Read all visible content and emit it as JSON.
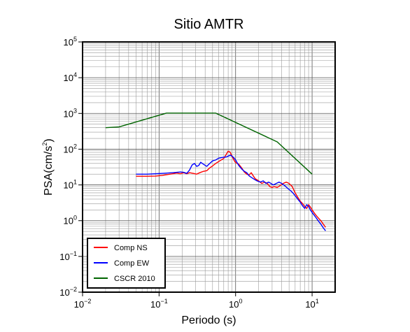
{
  "chart_data": {
    "type": "line",
    "title": "Sitio AMTR",
    "xlabel": "Periodo (s)",
    "ylabel": "PSA(cm/s2)",
    "ylabel_main": "PSA(cm/s",
    "ylabel_sup": "2",
    "ylabel_close": ")",
    "xscale": "log",
    "yscale": "log",
    "xlim": [
      0.01,
      20
    ],
    "ylim": [
      0.01,
      100000
    ],
    "grid": true,
    "legend_position": "bottom-left",
    "x_ticks": [
      {
        "base": "10",
        "exp": "−2"
      },
      {
        "base": "10",
        "exp": "−1"
      },
      {
        "base": "10",
        "exp": "0"
      },
      {
        "base": "10",
        "exp": "1"
      }
    ],
    "y_ticks": [
      {
        "base": "10",
        "exp": "−2"
      },
      {
        "base": "10",
        "exp": "−1"
      },
      {
        "base": "10",
        "exp": "0"
      },
      {
        "base": "10",
        "exp": "1"
      },
      {
        "base": "10",
        "exp": "2"
      },
      {
        "base": "10",
        "exp": "3"
      },
      {
        "base": "10",
        "exp": "4"
      },
      {
        "base": "10",
        "exp": "5"
      }
    ],
    "series": [
      {
        "name": "Comp NS",
        "color": "#ff0000",
        "points": [
          [
            0.05,
            17.5
          ],
          [
            0.07,
            17.5
          ],
          [
            0.09,
            17.7
          ],
          [
            0.11,
            18.5
          ],
          [
            0.13,
            19.5
          ],
          [
            0.15,
            20.5
          ],
          [
            0.17,
            21.5
          ],
          [
            0.19,
            20.5
          ],
          [
            0.21,
            22
          ],
          [
            0.23,
            20.5
          ],
          [
            0.25,
            22
          ],
          [
            0.28,
            21
          ],
          [
            0.31,
            20
          ],
          [
            0.34,
            22
          ],
          [
            0.38,
            24
          ],
          [
            0.42,
            25
          ],
          [
            0.46,
            30
          ],
          [
            0.5,
            34
          ],
          [
            0.55,
            40
          ],
          [
            0.6,
            45
          ],
          [
            0.65,
            50
          ],
          [
            0.7,
            55
          ],
          [
            0.75,
            70
          ],
          [
            0.8,
            88
          ],
          [
            0.85,
            82
          ],
          [
            0.9,
            62
          ],
          [
            0.95,
            50
          ],
          [
            1.0,
            42
          ],
          [
            1.1,
            38
          ],
          [
            1.2,
            30
          ],
          [
            1.3,
            23
          ],
          [
            1.4,
            20
          ],
          [
            1.5,
            19
          ],
          [
            1.6,
            22
          ],
          [
            1.7,
            18
          ],
          [
            1.8,
            15
          ],
          [
            2.0,
            13
          ],
          [
            2.2,
            11
          ],
          [
            2.4,
            12
          ],
          [
            2.6,
            11
          ],
          [
            2.8,
            9
          ],
          [
            3.0,
            8.5
          ],
          [
            3.2,
            9
          ],
          [
            3.5,
            8.5
          ],
          [
            3.8,
            9.5
          ],
          [
            4.2,
            11
          ],
          [
            4.6,
            12
          ],
          [
            5.0,
            11
          ],
          [
            5.5,
            9
          ],
          [
            6.0,
            6
          ],
          [
            6.5,
            4.5
          ],
          [
            7.0,
            3.5
          ],
          [
            7.5,
            3.0
          ],
          [
            8.0,
            2.5
          ],
          [
            8.5,
            2.2
          ],
          [
            9.0,
            2.8
          ],
          [
            9.5,
            2.4
          ],
          [
            10,
            2.0
          ],
          [
            11,
            1.5
          ],
          [
            12,
            1.2
          ],
          [
            13,
            1.0
          ],
          [
            14,
            0.8
          ],
          [
            15,
            0.65
          ]
        ]
      },
      {
        "name": "Comp EW",
        "color": "#0000ff",
        "points": [
          [
            0.05,
            20
          ],
          [
            0.07,
            20
          ],
          [
            0.09,
            20.5
          ],
          [
            0.11,
            21
          ],
          [
            0.13,
            21.5
          ],
          [
            0.15,
            22
          ],
          [
            0.17,
            22.5
          ],
          [
            0.19,
            23
          ],
          [
            0.21,
            22.5
          ],
          [
            0.23,
            21
          ],
          [
            0.25,
            26
          ],
          [
            0.27,
            36
          ],
          [
            0.29,
            40
          ],
          [
            0.31,
            33
          ],
          [
            0.33,
            35
          ],
          [
            0.35,
            43
          ],
          [
            0.38,
            38
          ],
          [
            0.42,
            33
          ],
          [
            0.46,
            40
          ],
          [
            0.5,
            47
          ],
          [
            0.55,
            50
          ],
          [
            0.6,
            56
          ],
          [
            0.65,
            58
          ],
          [
            0.7,
            60
          ],
          [
            0.75,
            60
          ],
          [
            0.8,
            64
          ],
          [
            0.85,
            68
          ],
          [
            0.9,
            64
          ],
          [
            0.95,
            57
          ],
          [
            1.0,
            50
          ],
          [
            1.1,
            35
          ],
          [
            1.2,
            28
          ],
          [
            1.3,
            24
          ],
          [
            1.4,
            22
          ],
          [
            1.5,
            18
          ],
          [
            1.7,
            15
          ],
          [
            1.9,
            13
          ],
          [
            2.1,
            12
          ],
          [
            2.3,
            13
          ],
          [
            2.5,
            11
          ],
          [
            2.7,
            12
          ],
          [
            2.9,
            11
          ],
          [
            3.1,
            10
          ],
          [
            3.4,
            11
          ],
          [
            3.7,
            12
          ],
          [
            4.0,
            11
          ],
          [
            4.4,
            9.5
          ],
          [
            4.8,
            8
          ],
          [
            5.2,
            7
          ],
          [
            5.6,
            6
          ],
          [
            6.0,
            5
          ],
          [
            6.5,
            4
          ],
          [
            7.0,
            3.3
          ],
          [
            7.5,
            2.6
          ],
          [
            8.0,
            2.2
          ],
          [
            8.5,
            2.8
          ],
          [
            9.0,
            2.5
          ],
          [
            9.5,
            2.0
          ],
          [
            10,
            1.7
          ],
          [
            11,
            1.3
          ],
          [
            12,
            1.0
          ],
          [
            13,
            0.8
          ],
          [
            14,
            0.63
          ],
          [
            15,
            0.52
          ]
        ]
      },
      {
        "name": "CSCR 2010",
        "color": "#006400",
        "points": [
          [
            0.02,
            400
          ],
          [
            0.03,
            420
          ],
          [
            0.125,
            1020
          ],
          [
            0.55,
            1020
          ],
          [
            3.5,
            160
          ],
          [
            10,
            20
          ]
        ]
      }
    ]
  }
}
